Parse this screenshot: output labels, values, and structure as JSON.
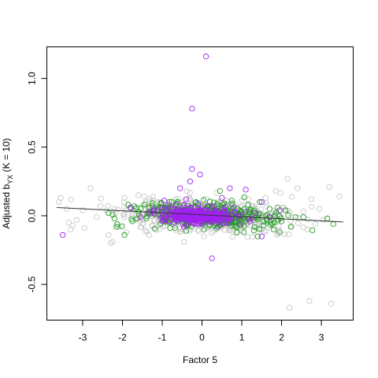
{
  "chart_data": {
    "type": "scatter",
    "title": "",
    "xlabel": "Factor 5",
    "ylabel_main": "Adjusted b",
    "ylabel_sub": "YX",
    "ylabel_tail": " (K = 10)",
    "xlim": [
      -3.9,
      3.8
    ],
    "ylim": [
      -0.76,
      1.23
    ],
    "x_ticks": [
      -3,
      -2,
      -1,
      0,
      1,
      2,
      3
    ],
    "y_ticks": [
      -0.5,
      0.0,
      0.5,
      1.0
    ],
    "x_tick_labels": [
      "-3",
      "-2",
      "-1",
      "0",
      "1",
      "2",
      "3"
    ],
    "y_tick_labels": [
      "-0.5",
      "0.0",
      "0.5",
      "1.0"
    ],
    "grid": false,
    "trend_line": {
      "x": [
        -3.65,
        3.55
      ],
      "y": [
        0.06,
        -0.045
      ],
      "color": "#333333"
    },
    "series": [
      {
        "color": "#c8c8c8",
        "points": [
          [
            -3.55,
            0.13
          ],
          [
            -3.6,
            0.1
          ],
          [
            -3.4,
            0.05
          ],
          [
            -3.35,
            -0.05
          ],
          [
            -3.3,
            -0.1
          ],
          [
            -3.25,
            -0.07
          ],
          [
            -3.15,
            -0.03
          ],
          [
            -3.0,
            0.04
          ],
          [
            -2.95,
            -0.09
          ],
          [
            -2.8,
            0.2
          ],
          [
            -2.65,
            -0.01
          ],
          [
            -2.55,
            0.07
          ],
          [
            -2.4,
            0.04
          ],
          [
            -2.35,
            -0.14
          ],
          [
            -2.3,
            -0.2
          ],
          [
            -2.25,
            -0.19
          ],
          [
            -2.2,
            0.05
          ],
          [
            -2.1,
            -0.08
          ],
          [
            -1.95,
            0.13
          ],
          [
            -1.9,
            -0.12
          ],
          [
            -1.75,
            0.02
          ],
          [
            -1.6,
            0.15
          ],
          [
            -1.55,
            -0.04
          ],
          [
            -1.4,
            0.08
          ],
          [
            -1.25,
            -0.07
          ],
          [
            -1.1,
            0.1
          ],
          [
            -0.9,
            -0.05
          ],
          [
            -0.7,
            0.06
          ],
          [
            -0.45,
            -0.19
          ],
          [
            -0.3,
            0.12
          ],
          [
            0.05,
            -0.15
          ],
          [
            0.15,
            0.03
          ],
          [
            0.3,
            -0.11
          ],
          [
            0.45,
            0.1
          ],
          [
            0.55,
            -0.07
          ],
          [
            0.7,
            0.05
          ],
          [
            0.85,
            -0.12
          ],
          [
            1.0,
            0.11
          ],
          [
            1.15,
            -0.05
          ],
          [
            1.3,
            0.07
          ],
          [
            1.45,
            -0.09
          ],
          [
            1.6,
            0.13
          ],
          [
            1.75,
            -0.02
          ],
          [
            1.85,
            0.18
          ],
          [
            1.9,
            -0.13
          ],
          [
            2.05,
            0.06
          ],
          [
            2.15,
            0.27
          ],
          [
            2.25,
            -0.08
          ],
          [
            2.4,
            0.2
          ],
          [
            2.55,
            0.03
          ],
          [
            2.65,
            -0.1
          ],
          [
            2.75,
            0.12
          ],
          [
            2.85,
            -0.06
          ],
          [
            2.95,
            0.05
          ],
          [
            3.05,
            -0.03
          ],
          [
            3.2,
            0.21
          ],
          [
            3.45,
            0.14
          ],
          [
            2.7,
            -0.62
          ],
          [
            3.25,
            -0.64
          ],
          [
            2.2,
            -0.67
          ]
        ]
      },
      {
        "color": "#22a022",
        "points": [
          [
            -2.35,
            0.02
          ],
          [
            -2.2,
            -0.02
          ],
          [
            -2.15,
            -0.08
          ],
          [
            -1.95,
            -0.14
          ],
          [
            -1.85,
            0.08
          ],
          [
            -1.75,
            -0.04
          ],
          [
            -1.6,
            0.03
          ],
          [
            -1.4,
            -0.02
          ],
          [
            -1.25,
            0.07
          ],
          [
            -1.05,
            -0.06
          ],
          [
            -0.9,
            0.05
          ],
          [
            -0.8,
            -0.09
          ],
          [
            -0.65,
            0.09
          ],
          [
            -0.5,
            0.02
          ],
          [
            -0.35,
            -0.07
          ],
          [
            -0.15,
            0.1
          ],
          [
            0.05,
            -0.1
          ],
          [
            0.2,
            0.07
          ],
          [
            0.35,
            -0.06
          ],
          [
            0.45,
            0.18
          ],
          [
            0.6,
            -0.02
          ],
          [
            0.75,
            0.11
          ],
          [
            0.85,
            -0.08
          ],
          [
            0.95,
            0.04
          ],
          [
            1.05,
            -0.12
          ],
          [
            1.15,
            0.08
          ],
          [
            1.3,
            -0.03
          ],
          [
            1.45,
            0.1
          ],
          [
            1.55,
            -0.07
          ],
          [
            1.7,
            0.05
          ],
          [
            1.8,
            -0.1
          ],
          [
            1.9,
            0.06
          ],
          [
            2.0,
            -0.04
          ],
          [
            2.1,
            0.04
          ],
          [
            2.35,
            -0.01
          ],
          [
            2.55,
            -0.01
          ],
          [
            3.15,
            -0.02
          ],
          [
            3.3,
            -0.06
          ],
          [
            1.95,
            -0.12
          ],
          [
            1.4,
            -0.15
          ]
        ]
      },
      {
        "color": "#a020f0",
        "points": [
          [
            -3.5,
            -0.14
          ],
          [
            0.1,
            1.16
          ],
          [
            -0.25,
            0.78
          ],
          [
            -0.25,
            0.34
          ],
          [
            -0.05,
            0.3
          ],
          [
            -0.3,
            0.25
          ],
          [
            -0.55,
            0.2
          ],
          [
            0.7,
            0.2
          ],
          [
            1.1,
            0.19
          ],
          [
            0.25,
            -0.31
          ],
          [
            -1.8,
            0.06
          ],
          [
            -1.55,
            -0.01
          ],
          [
            -1.2,
            0.05
          ],
          [
            -1.0,
            -0.04
          ],
          [
            -0.85,
            0.08
          ],
          [
            -0.7,
            -0.05
          ],
          [
            -0.6,
            0.03
          ],
          [
            -0.45,
            -0.08
          ],
          [
            -0.3,
            0.06
          ],
          [
            -0.2,
            -0.03
          ],
          [
            -0.1,
            0.09
          ],
          [
            0.0,
            -0.06
          ],
          [
            0.1,
            0.04
          ],
          [
            0.2,
            -0.02
          ],
          [
            0.3,
            0.07
          ],
          [
            0.4,
            -0.08
          ],
          [
            0.55,
            0.05
          ],
          [
            0.65,
            -0.04
          ],
          [
            0.8,
            0.06
          ],
          [
            0.95,
            -0.06
          ],
          [
            1.1,
            0.03
          ],
          [
            1.25,
            -0.02
          ],
          [
            1.35,
            0.02
          ],
          [
            1.5,
            -0.15
          ],
          [
            1.7,
            -0.01
          ],
          [
            1.95,
            0.04
          ],
          [
            -0.4,
            0.12
          ],
          [
            0.5,
            0.13
          ],
          [
            -0.95,
            0.11
          ],
          [
            1.5,
            0.1
          ]
        ]
      }
    ],
    "dense_clusters": [
      {
        "color": "#c8c8c8",
        "count": 520,
        "center": [
          0.0,
          0.0
        ],
        "sx": 0.95,
        "sy": 0.055,
        "slope": -0.012,
        "seed": 11
      },
      {
        "color": "#22a022",
        "count": 340,
        "center": [
          0.05,
          0.0
        ],
        "sx": 0.8,
        "sy": 0.045,
        "slope": -0.012,
        "seed": 23
      },
      {
        "color": "#a020f0",
        "count": 300,
        "center": [
          -0.1,
          0.0
        ],
        "sx": 0.45,
        "sy": 0.025,
        "slope": -0.01,
        "seed": 37
      }
    ]
  }
}
